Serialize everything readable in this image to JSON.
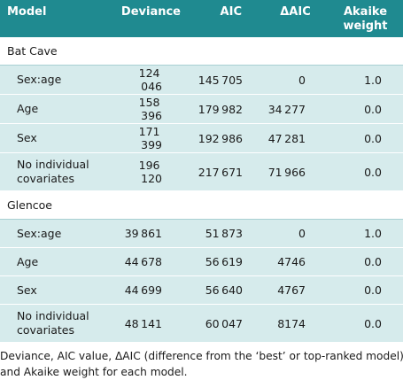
{
  "headers": [
    "Model",
    "Deviance",
    "AIC",
    "ΔAIC",
    "Akaike",
    "weight"
  ],
  "groups": [
    {
      "name": "Bat Cave",
      "rows": [
        {
          "model": "Sex:age",
          "model2": "",
          "deviance": "124 046",
          "aic": "145 705",
          "daic": "0",
          "weight": "1.0"
        },
        {
          "model": "Age",
          "model2": "",
          "deviance": "158 396",
          "aic": "179 982",
          "daic": "34 277",
          "weight": "0.0"
        },
        {
          "model": "Sex",
          "model2": "",
          "deviance": "171 399",
          "aic": "192 986",
          "daic": "47 281",
          "weight": "0.0"
        },
        {
          "model": "No individual",
          "model2": "covariates",
          "deviance": "196 120",
          "aic": "217 671",
          "daic": "71 966",
          "weight": "0.0"
        }
      ]
    },
    {
      "name": "Glencoe",
      "rows": [
        {
          "model": "Sex:age",
          "model2": "",
          "deviance": "39 861",
          "aic": "51 873",
          "daic": "0",
          "weight": "1.0"
        },
        {
          "model": "Age",
          "model2": "",
          "deviance": "44 678",
          "aic": "56 619",
          "daic": "4746",
          "weight": "0.0"
        },
        {
          "model": "Sex",
          "model2": "",
          "deviance": "44 699",
          "aic": "56 640",
          "daic": "4767",
          "weight": "0.0"
        },
        {
          "model": "No individual",
          "model2": "covariates",
          "deviance": "48 141",
          "aic": "60 047",
          "daic": "8174",
          "weight": "0.0"
        }
      ]
    }
  ],
  "footnote": {
    "line1": "Deviance, AIC value, ΔAIC (difference from the ‘best’ or top-ranked model)",
    "line2": "and Akaike weight for each model."
  }
}
